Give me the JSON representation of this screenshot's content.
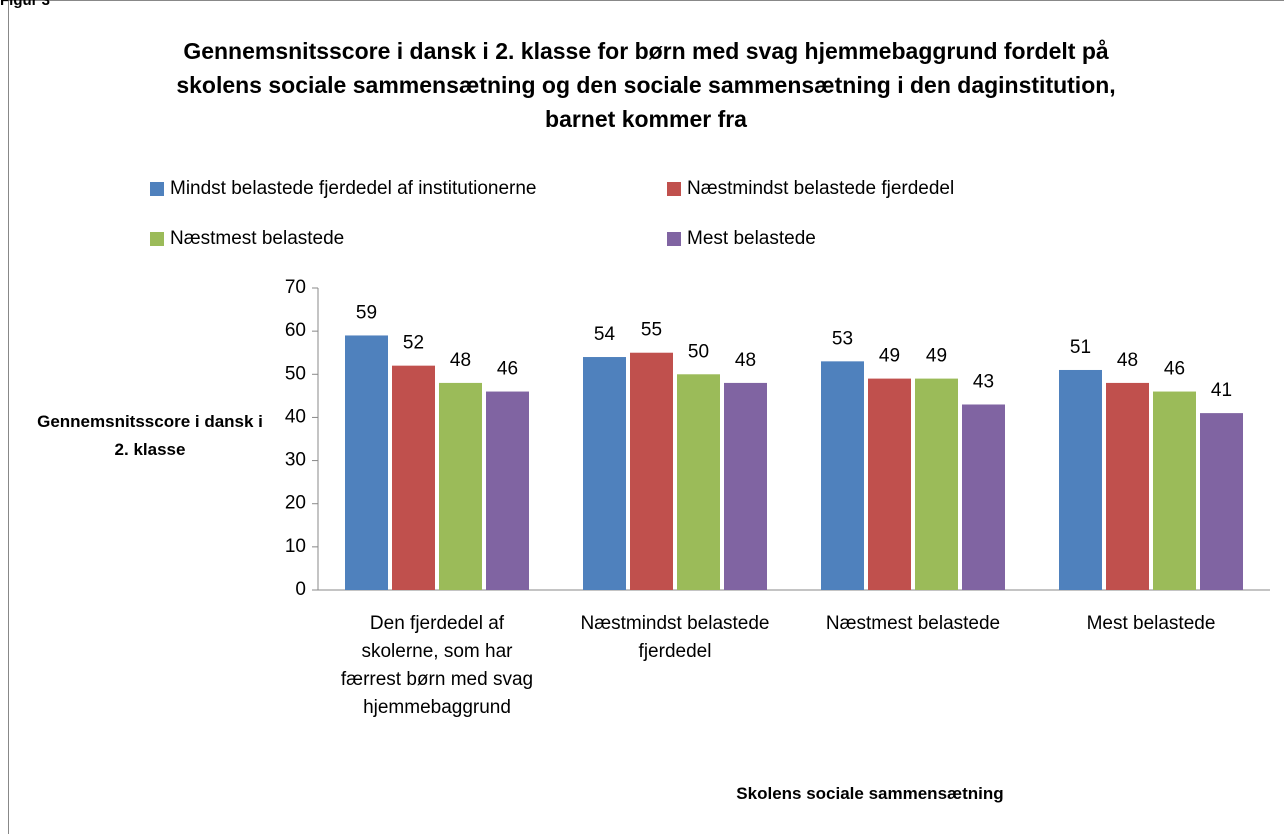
{
  "figure_label": "Figur 3",
  "chart_data": {
    "type": "bar",
    "title": "Gennemsnitsscore i dansk i 2. klasse for børn med svag hjemmebaggrund fordelt på skolens sociale sammensætning og den sociale sammensætning i den daginstitution, barnet kommer fra",
    "x_label": "Skolens sociale sammensætning",
    "y_label": "Gennemsnitsscore i dansk i 2. klasse",
    "categories": [
      "Den fjerdedel af skolerne, som har færrest børn med svag hjemmebaggrund",
      "Næstmindst belastede fjerdedel",
      "Næstmest belastede",
      "Mest belastede"
    ],
    "series": [
      {
        "name": "Mindst belastede fjerdedel af institutionerne",
        "color": "#4f81bd",
        "values": [
          59,
          54,
          53,
          51
        ]
      },
      {
        "name": "Næstmindst belastede fjerdedel",
        "color": "#c0504d",
        "values": [
          52,
          55,
          49,
          48
        ]
      },
      {
        "name": "Næstmest belastede",
        "color": "#9bbb59",
        "values": [
          48,
          50,
          49,
          46
        ]
      },
      {
        "name": "Mest belastede",
        "color": "#8064a2",
        "values": [
          46,
          48,
          43,
          41
        ]
      }
    ],
    "ylim": [
      0,
      70
    ],
    "yticks": [
      0,
      10,
      20,
      30,
      40,
      50,
      60,
      70
    ],
    "grid": false,
    "legend": "top"
  }
}
